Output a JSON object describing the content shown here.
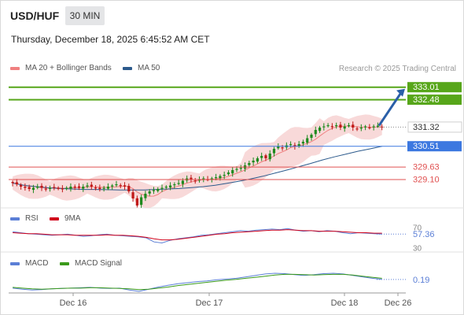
{
  "header": {
    "symbol": "USD/HUF",
    "timeframe": "30 MIN",
    "datetime": "Thursday, December 18, 2025 6:45:52 AM CET",
    "credit": "Research © 2025 Trading Central"
  },
  "legends": {
    "main": [
      {
        "label": "MA 20 + Bollinger Bands",
        "color": "#f08080"
      },
      {
        "label": "MA 50",
        "color": "#2c5a8c"
      }
    ],
    "rsi": [
      {
        "label": "RSI",
        "color": "#5b7fd6"
      },
      {
        "label": "9MA",
        "color": "#d0021b"
      }
    ],
    "macd": [
      {
        "label": "MACD",
        "color": "#5b7fd6"
      },
      {
        "label": "MACD Signal",
        "color": "#3a9a1a"
      }
    ]
  },
  "colors": {
    "up": "#1e8a1e",
    "down": "#c01818",
    "resistance": "#57a61a",
    "pivot": "#3c78e0",
    "support": "#e05050",
    "arrow": "#2a5fa8",
    "price_box": "#ffffff"
  },
  "chart_data": [
    {
      "type": "candlestick",
      "ylim": [
        328.0,
        333.6
      ],
      "x_ticks": [
        "Dec 16",
        "Dec 17",
        "Dec 18",
        "Dec 26"
      ],
      "levels": [
        {
          "value": 333.01,
          "label": "333.01",
          "kind": "resistance"
        },
        {
          "value": 332.48,
          "label": "332.48",
          "kind": "resistance"
        },
        {
          "value": 331.32,
          "label": "331.32",
          "kind": "last"
        },
        {
          "value": 330.51,
          "label": "330.51",
          "kind": "pivot"
        },
        {
          "value": 329.63,
          "label": "329.63",
          "kind": "support"
        },
        {
          "value": 329.1,
          "label": "329.10",
          "kind": "support"
        }
      ],
      "series": [
        {
          "name": "MA 20 + Bollinger Bands"
        },
        {
          "name": "MA 50"
        }
      ],
      "close_path": [
        328.95,
        328.9,
        328.8,
        328.75,
        328.7,
        328.75,
        328.8,
        328.75,
        328.7,
        328.75,
        328.78,
        328.72,
        328.7,
        328.75,
        328.8,
        328.78,
        328.75,
        328.8,
        328.85,
        328.8,
        328.75,
        328.7,
        328.75,
        328.8,
        328.85,
        328.9,
        328.85,
        328.8,
        328.6,
        328.3,
        328.0,
        328.35,
        328.5,
        328.6,
        328.65,
        328.7,
        328.75,
        328.8,
        328.85,
        328.9,
        328.95,
        329.05,
        329.15,
        329.1,
        329.05,
        329.1,
        329.15,
        329.1,
        329.15,
        329.2,
        329.25,
        329.3,
        329.4,
        329.5,
        329.55,
        329.6,
        329.7,
        329.8,
        329.9,
        330.0,
        330.1,
        330.0,
        330.2,
        330.4,
        330.5,
        330.45,
        330.55,
        330.6,
        330.5,
        330.6,
        330.7,
        330.85,
        331.0,
        331.2,
        331.3,
        331.35,
        331.4,
        331.35,
        331.4,
        331.3,
        331.35,
        331.4,
        331.3,
        331.25,
        331.3,
        331.35,
        331.3,
        331.35,
        331.38,
        331.32
      ],
      "ma50_path": [
        328.95,
        328.85,
        328.8,
        328.75,
        328.72,
        328.7,
        328.68,
        328.68,
        328.67,
        328.66,
        328.66,
        328.66,
        328.68,
        328.7,
        328.72,
        328.76,
        328.8,
        328.86,
        328.94,
        329.03,
        329.13,
        329.24,
        329.37,
        329.5,
        329.64,
        329.78,
        329.93,
        330.06,
        330.18,
        330.3,
        330.4,
        330.51
      ]
    },
    {
      "type": "line",
      "title": "RSI",
      "ylim": [
        30,
        70
      ],
      "y_ticks": [
        70,
        30
      ],
      "value_label": "57.36",
      "series": [
        {
          "name": "RSI",
          "values": [
            62,
            60,
            58,
            57,
            56,
            55,
            56,
            57,
            55,
            53,
            54,
            56,
            57,
            55,
            54,
            53,
            52,
            50,
            42,
            40,
            45,
            48,
            50,
            52,
            55,
            56,
            58,
            60,
            62,
            64,
            63,
            65,
            66,
            67,
            66,
            68,
            65,
            63,
            64,
            62,
            64,
            63,
            60,
            58,
            60,
            59,
            58,
            57.36
          ]
        },
        {
          "name": "9MA",
          "values": [
            60,
            59,
            58,
            58,
            57,
            56,
            56,
            56,
            55,
            55,
            55,
            55,
            56,
            55,
            55,
            54,
            53,
            51,
            48,
            46,
            46,
            47,
            49,
            51,
            53,
            55,
            57,
            58,
            60,
            61,
            62,
            63,
            64,
            65,
            65,
            66,
            65,
            64,
            64,
            63,
            63,
            63,
            62,
            61,
            60,
            60,
            59,
            59
          ]
        }
      ]
    },
    {
      "type": "line",
      "title": "MACD",
      "value_label": "0.19",
      "series": [
        {
          "name": "MACD",
          "values": [
            -0.05,
            -0.08,
            -0.1,
            -0.09,
            -0.07,
            -0.06,
            -0.05,
            -0.04,
            -0.03,
            -0.05,
            -0.06,
            -0.05,
            -0.1,
            -0.14,
            -0.08,
            -0.02,
            0.03,
            0.07,
            0.1,
            0.13,
            0.15,
            0.18,
            0.2,
            0.22,
            0.26,
            0.3,
            0.34,
            0.36,
            0.35,
            0.32,
            0.3,
            0.32,
            0.35,
            0.36,
            0.34,
            0.3,
            0.26,
            0.22,
            0.19
          ]
        },
        {
          "name": "MACD Signal",
          "values": [
            -0.03,
            -0.05,
            -0.07,
            -0.08,
            -0.07,
            -0.06,
            -0.05,
            -0.05,
            -0.04,
            -0.04,
            -0.05,
            -0.06,
            -0.07,
            -0.09,
            -0.08,
            -0.05,
            -0.02,
            0.02,
            0.05,
            0.08,
            0.11,
            0.14,
            0.17,
            0.19,
            0.22,
            0.25,
            0.28,
            0.31,
            0.33,
            0.33,
            0.32,
            0.31,
            0.32,
            0.33,
            0.33,
            0.31,
            0.28,
            0.25,
            0.22
          ]
        }
      ]
    }
  ]
}
